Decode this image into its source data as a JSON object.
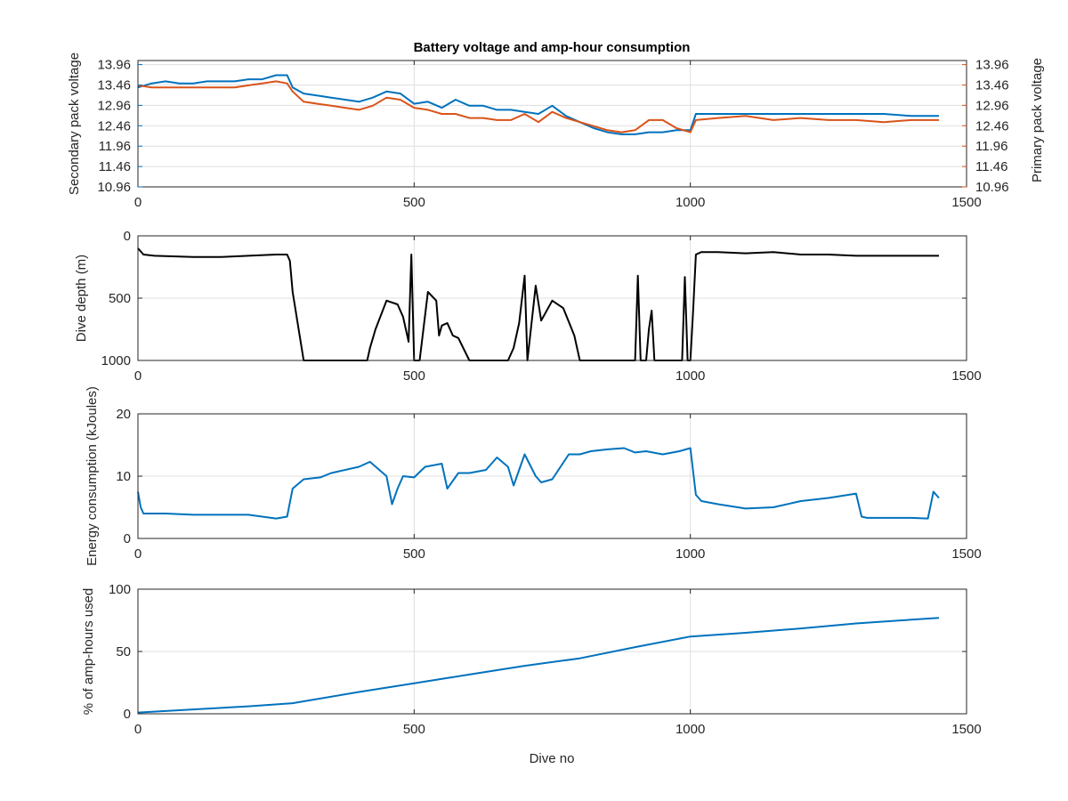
{
  "figure": {
    "title": "Battery voltage and amp-hour consumption",
    "xlabel": "Dive no"
  },
  "colors": {
    "axes": "#262626",
    "grid": "#dfdfdf",
    "secondary": "#0072bd",
    "primary": "#d95319",
    "depth": "#000000",
    "energy": "#0072bd",
    "amphours": "#0072bd"
  },
  "chart_data": [
    {
      "type": "line",
      "title": "Battery voltage and amp-hour consumption",
      "xlabel": "",
      "ylabel_left": "Secondary pack voltage",
      "ylabel_right": "Primary pack voltage",
      "xlim": [
        0,
        1500
      ],
      "ylim": [
        10.96,
        14.06
      ],
      "xticks": [
        "0",
        "500",
        "1000",
        "1500"
      ],
      "yticks": [
        "10.96",
        "11.46",
        "11.96",
        "12.46",
        "12.96",
        "13.46",
        "13.96"
      ],
      "grid": true,
      "series": [
        {
          "axis": "left",
          "color": "#0072bd",
          "x": [
            0,
            25,
            50,
            75,
            100,
            125,
            150,
            175,
            200,
            225,
            250,
            270,
            280,
            300,
            325,
            350,
            375,
            400,
            425,
            450,
            475,
            500,
            525,
            550,
            575,
            600,
            625,
            650,
            675,
            700,
            725,
            750,
            775,
            800,
            825,
            850,
            875,
            900,
            925,
            950,
            975,
            1000,
            1010,
            1050,
            1100,
            1150,
            1200,
            1250,
            1300,
            1350,
            1400,
            1450
          ],
          "values": [
            13.4,
            13.5,
            13.55,
            13.5,
            13.5,
            13.55,
            13.55,
            13.55,
            13.6,
            13.6,
            13.7,
            13.7,
            13.4,
            13.25,
            13.2,
            13.15,
            13.1,
            13.05,
            13.15,
            13.3,
            13.25,
            13.0,
            13.05,
            12.9,
            13.1,
            12.95,
            12.95,
            12.85,
            12.85,
            12.8,
            12.75,
            12.95,
            12.7,
            12.55,
            12.4,
            12.3,
            12.25,
            12.25,
            12.3,
            12.3,
            12.35,
            12.35,
            12.75,
            12.75,
            12.75,
            12.75,
            12.75,
            12.75,
            12.75,
            12.75,
            12.7,
            12.7
          ]
        },
        {
          "axis": "right",
          "color": "#d95319",
          "x": [
            0,
            25,
            50,
            75,
            100,
            125,
            150,
            175,
            200,
            225,
            250,
            270,
            280,
            300,
            325,
            350,
            375,
            400,
            425,
            450,
            475,
            500,
            525,
            550,
            575,
            600,
            625,
            650,
            675,
            700,
            725,
            750,
            775,
            800,
            825,
            850,
            875,
            900,
            925,
            950,
            975,
            1000,
            1010,
            1050,
            1100,
            1150,
            1200,
            1250,
            1300,
            1350,
            1400,
            1450
          ],
          "values": [
            13.45,
            13.4,
            13.4,
            13.4,
            13.4,
            13.4,
            13.4,
            13.4,
            13.45,
            13.5,
            13.55,
            13.5,
            13.3,
            13.05,
            13.0,
            12.95,
            12.9,
            12.85,
            12.95,
            13.15,
            13.1,
            12.9,
            12.85,
            12.75,
            12.75,
            12.65,
            12.65,
            12.6,
            12.6,
            12.75,
            12.55,
            12.8,
            12.65,
            12.55,
            12.45,
            12.35,
            12.3,
            12.35,
            12.6,
            12.6,
            12.4,
            12.3,
            12.6,
            12.65,
            12.7,
            12.6,
            12.65,
            12.6,
            12.6,
            12.55,
            12.6,
            12.6
          ]
        }
      ]
    },
    {
      "type": "line",
      "xlabel": "",
      "ylabel": "Dive depth (m)",
      "xlim": [
        0,
        1500
      ],
      "ylim": [
        0,
        1000
      ],
      "y_reversed": true,
      "xticks": [
        "0",
        "500",
        "1000",
        "1500"
      ],
      "yticks": [
        "0",
        "500",
        "1000"
      ],
      "grid": true,
      "series": [
        {
          "color": "#000000",
          "x": [
            0,
            10,
            30,
            100,
            150,
            200,
            250,
            270,
            275,
            280,
            300,
            350,
            400,
            415,
            420,
            430,
            450,
            470,
            480,
            490,
            495,
            500,
            503,
            510,
            525,
            540,
            545,
            550,
            560,
            570,
            580,
            600,
            610,
            650,
            670,
            680,
            690,
            700,
            705,
            715,
            720,
            730,
            750,
            770,
            790,
            800,
            810,
            850,
            880,
            900,
            905,
            910,
            920,
            925,
            930,
            935,
            940,
            950,
            955,
            960,
            975,
            985,
            990,
            995,
            1000,
            1005,
            1010,
            1020,
            1050,
            1100,
            1150,
            1200,
            1250,
            1300,
            1350,
            1400,
            1450
          ],
          "values": [
            100,
            150,
            160,
            170,
            170,
            160,
            150,
            150,
            200,
            450,
            1000,
            1000,
            1000,
            1000,
            900,
            750,
            520,
            550,
            650,
            850,
            150,
            1000,
            1000,
            1000,
            450,
            520,
            800,
            720,
            700,
            800,
            820,
            1000,
            1000,
            1000,
            1000,
            900,
            700,
            320,
            1000,
            600,
            400,
            680,
            520,
            580,
            800,
            1000,
            1000,
            1000,
            1000,
            1000,
            320,
            1000,
            1000,
            750,
            600,
            1000,
            1000,
            1000,
            1000,
            1000,
            1000,
            1000,
            330,
            1000,
            1000,
            600,
            150,
            130,
            130,
            140,
            130,
            150,
            150,
            160,
            160,
            160,
            160
          ]
        }
      ]
    },
    {
      "type": "line",
      "xlabel": "",
      "ylabel": "Energy consumption (kJoules)",
      "xlim": [
        0,
        1500
      ],
      "ylim": [
        0,
        20
      ],
      "xticks": [
        "0",
        "500",
        "1000",
        "1500"
      ],
      "yticks": [
        "0",
        "10",
        "20"
      ],
      "grid": true,
      "series": [
        {
          "color": "#0072bd",
          "x": [
            0,
            5,
            10,
            50,
            100,
            150,
            200,
            250,
            270,
            280,
            300,
            330,
            350,
            400,
            420,
            450,
            460,
            470,
            480,
            500,
            520,
            550,
            560,
            580,
            600,
            630,
            650,
            670,
            680,
            700,
            720,
            730,
            750,
            780,
            800,
            820,
            850,
            880,
            900,
            920,
            950,
            980,
            1000,
            1010,
            1020,
            1050,
            1100,
            1150,
            1200,
            1250,
            1300,
            1310,
            1320,
            1350,
            1400,
            1430,
            1440,
            1450
          ],
          "values": [
            7.5,
            5,
            4,
            4,
            3.8,
            3.8,
            3.8,
            3.2,
            3.5,
            8,
            9.5,
            9.8,
            10.5,
            11.5,
            12.3,
            10,
            5.5,
            8,
            10,
            9.8,
            11.5,
            12,
            8,
            10.5,
            10.5,
            11,
            13,
            11.5,
            8.5,
            13.5,
            10,
            9,
            9.5,
            13.5,
            13.5,
            14,
            14.3,
            14.5,
            13.8,
            14,
            13.5,
            14,
            14.5,
            7,
            6,
            5.5,
            4.8,
            5,
            6,
            6.5,
            7.2,
            3.5,
            3.3,
            3.3,
            3.3,
            3.2,
            7.5,
            6.5
          ]
        }
      ]
    },
    {
      "type": "line",
      "xlabel": "Dive no",
      "ylabel": "% of amp-hours used",
      "xlim": [
        0,
        1500
      ],
      "ylim": [
        0,
        100
      ],
      "xticks": [
        "0",
        "500",
        "1000",
        "1500"
      ],
      "yticks": [
        "0",
        "50",
        "100"
      ],
      "grid": true,
      "series": [
        {
          "color": "#0072bd",
          "x": [
            0,
            100,
            200,
            280,
            300,
            400,
            500,
            600,
            700,
            800,
            900,
            1000,
            1050,
            1100,
            1200,
            1300,
            1400,
            1450
          ],
          "values": [
            1,
            3.5,
            6,
            8.5,
            10,
            17.5,
            24.5,
            31.5,
            38.5,
            44.5,
            53.5,
            62,
            63.5,
            65,
            68.5,
            72.5,
            75.5,
            77
          ]
        }
      ]
    }
  ]
}
